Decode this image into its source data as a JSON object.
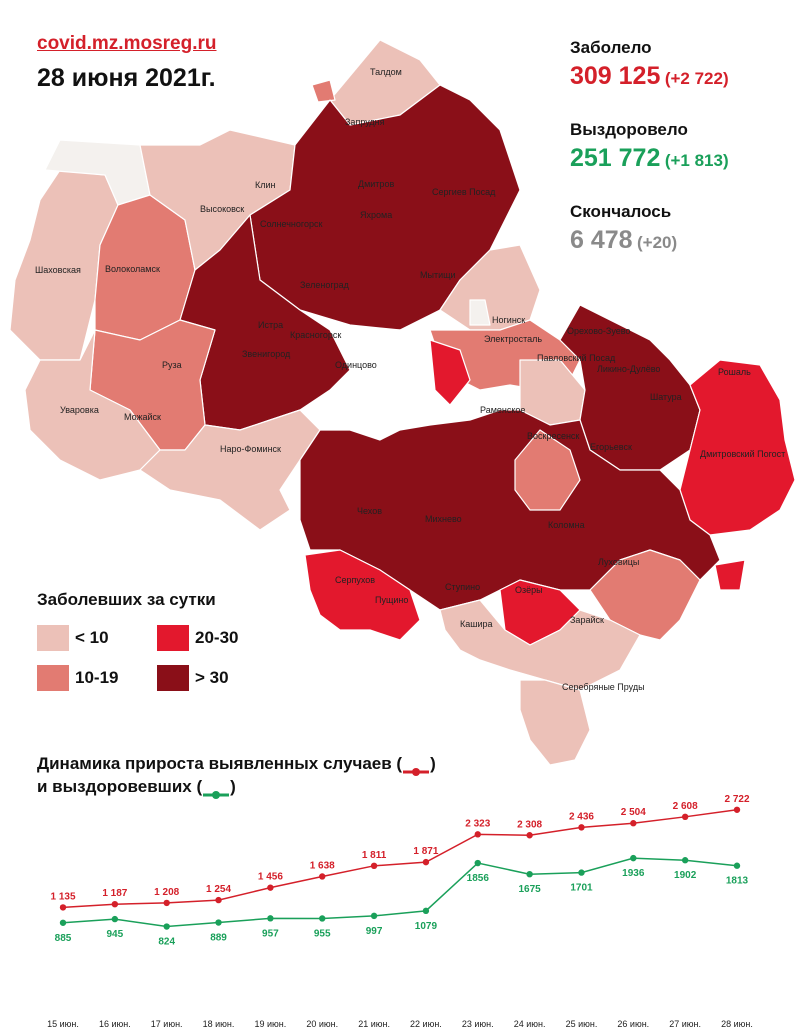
{
  "header": {
    "site": "covid.mz.mosreg.ru",
    "date": "28 июня 2021г."
  },
  "stats": {
    "infected_label": "Заболело",
    "infected_total": "309 125",
    "infected_delta": "(+2 722)",
    "recovered_label": "Выздоровело",
    "recovered_total": "251 772",
    "recovered_delta": "(+1 813)",
    "deaths_label": "Скончалось",
    "deaths_total": "6 478",
    "deaths_delta": "(+20)"
  },
  "colors": {
    "infected": "#d4202a",
    "recovered": "#1aa05a",
    "deaths": "#8a8a8a",
    "lt10": "#ecc1b8",
    "c10_19": "#e27b72",
    "c20_30": "#e3182d",
    "gt30": "#8a0f18"
  },
  "legend": {
    "title": "Заболевших за сутки",
    "items": [
      {
        "label": "< 10",
        "color": "#ecc1b8"
      },
      {
        "label": "20-30",
        "color": "#e3182d"
      },
      {
        "label": "10-19",
        "color": "#e27b72"
      },
      {
        "label": "> 30",
        "color": "#8a0f18"
      }
    ]
  },
  "map_labels": [
    "Талдом",
    "Запрудня",
    "Дмитров",
    "Сергиев Посад",
    "Клин",
    "Высоковск",
    "Солнечногорск",
    "Яхрома",
    "Шаховская",
    "Волоколамск",
    "Зеленоград",
    "Истра",
    "Мытищи",
    "Ногинск",
    "Электросталь",
    "Орехово-Зуево",
    "Павловский Посад",
    "Ликино-Дулёво",
    "Рошаль",
    "Красногорск",
    "Звенигород",
    "Одинцово",
    "Руза",
    "Шатура",
    "Уваровка",
    "Можайск",
    "Наро-Фоминск",
    "Раменское",
    "Егорьевск",
    "Воскресенск",
    "Дмитровский Погост",
    "Чехов",
    "Михнево",
    "Коломна",
    "Серпухов",
    "Ступино",
    "Озёры",
    "Луховицы",
    "Пущино",
    "Кашира",
    "Зарайск",
    "Серебряные Пруды"
  ],
  "chart_title_line1": "Динамика прироста выявленных случаев (",
  "chart_title_line1_end": ")",
  "chart_title_line2": "и выздоровевших (",
  "chart_title_line2_end": ")",
  "chart_data": {
    "type": "line",
    "categories": [
      "15 июн.",
      "16 июн.",
      "17 июн.",
      "18 июн.",
      "19 июн.",
      "20 июн.",
      "21 июн.",
      "22 июн.",
      "23 июн.",
      "24 июн.",
      "25 июн.",
      "26 июн.",
      "27 июн.",
      "28 июн."
    ],
    "series": [
      {
        "values": [
          1135,
          1187,
          1208,
          1254,
          1456,
          1638,
          1811,
          1871,
          2323,
          2308,
          2436,
          2504,
          2608,
          2722
        ],
        "labels": [
          "1 135",
          "1 187",
          "1 208",
          "1 254",
          "1 456",
          "1 638",
          "1 811",
          "1 871",
          "2 323",
          "2 308",
          "2 436",
          "2 504",
          "2 608",
          "2 722"
        ],
        "color": "#d4202a"
      },
      {
        "values": [
          885,
          945,
          824,
          889,
          957,
          955,
          997,
          1079,
          1856,
          1675,
          1701,
          1936,
          1902,
          1813
        ],
        "labels": [
          "885",
          "945",
          "824",
          "889",
          "957",
          "955",
          "997",
          "1079",
          "1856",
          "1675",
          "1701",
          "1936",
          "1902",
          "1813"
        ],
        "color": "#1aa05a"
      }
    ],
    "title": "Динамика прироста выявленных случаев () и выздоровевших ()",
    "xlabel": "",
    "ylabel": "",
    "grid": false
  }
}
